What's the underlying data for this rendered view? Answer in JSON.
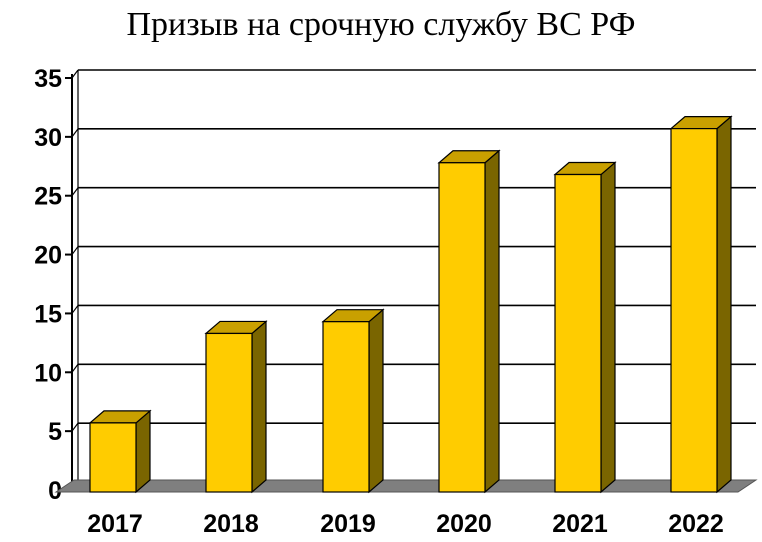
{
  "chart_data": {
    "type": "bar",
    "title": "Призыв на срочную службу ВС РФ",
    "xlabel": "",
    "ylabel": "",
    "categories": [
      "2017",
      "2018",
      "2019",
      "2020",
      "2021",
      "2022"
    ],
    "values": [
      5.7,
      13.3,
      14.3,
      27.8,
      26.8,
      30.7
    ],
    "ylim": [
      0,
      35
    ],
    "yticks": [
      0,
      5,
      10,
      15,
      20,
      25,
      30,
      35
    ],
    "grid": true,
    "style": "3d",
    "colors": {
      "bar_front": "#ffcc00",
      "bar_side": "#7a6500",
      "bar_top": "#c9a000",
      "floor": "#7f7f7f",
      "grid": "#000000"
    }
  }
}
